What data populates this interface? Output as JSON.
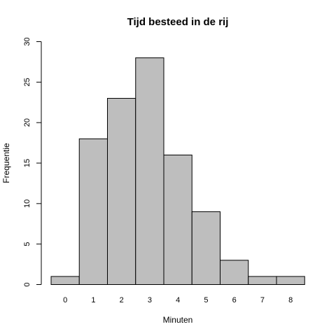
{
  "chart_data": {
    "type": "bar",
    "title": "Tijd besteed in de rij",
    "xlabel": "Minuten",
    "ylabel": "Frequentie",
    "categories": [
      "0",
      "1",
      "2",
      "3",
      "4",
      "5",
      "6",
      "7",
      "8"
    ],
    "values": [
      1,
      18,
      23,
      28,
      16,
      9,
      3,
      1,
      1
    ],
    "ylim": [
      0,
      30
    ],
    "yticks": [
      "0",
      "5",
      "10",
      "15",
      "20",
      "25",
      "30"
    ],
    "grid": false,
    "legend": "none",
    "bar_color": "#bebebe",
    "edge_color": "#000000"
  }
}
